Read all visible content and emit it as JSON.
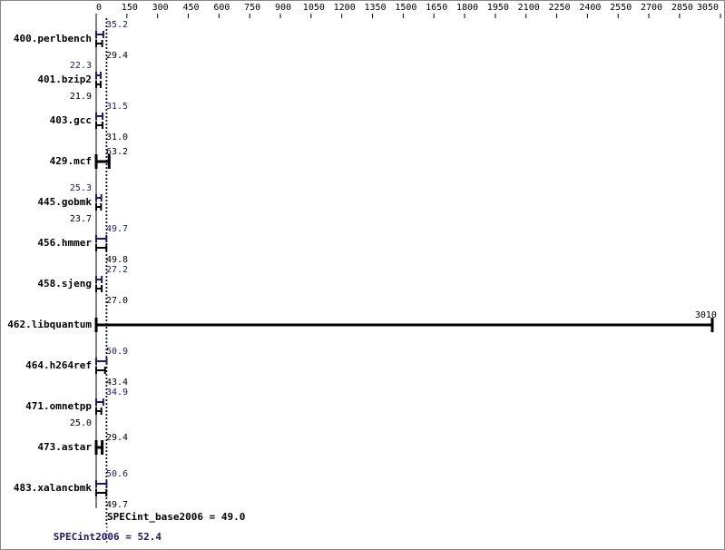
{
  "chart_data": {
    "type": "bar",
    "orientation": "horizontal",
    "categories": [
      "400.perlbench",
      "401.bzip2",
      "403.gcc",
      "429.mcf",
      "445.gobmk",
      "456.hmmer",
      "458.sjeng",
      "462.libquantum",
      "464.h264ref",
      "471.omnetpp",
      "473.astar",
      "483.xalancbmk"
    ],
    "series": [
      {
        "color": "#000000",
        "values": [
          29.4,
          21.9,
          31.0,
          63.2,
          23.7,
          49.8,
          27.0,
          3010,
          43.4,
          25.0,
          29.4,
          49.7
        ],
        "value_labels": [
          "29.4",
          "21.9",
          "31.0",
          "63.2",
          "23.7",
          "49.8",
          "27.0",
          "3010",
          "43.4",
          "25.0",
          "29.4",
          "49.7"
        ]
      },
      {
        "color": "#191970",
        "values": [
          35.2,
          22.3,
          31.5,
          null,
          25.3,
          49.7,
          27.2,
          null,
          50.9,
          34.9,
          null,
          50.6
        ],
        "value_labels": [
          "35.2",
          "22.3",
          "31.5",
          null,
          "25.3",
          "49.7",
          "27.2",
          null,
          "50.9",
          "34.9",
          null,
          "50.6"
        ]
      }
    ],
    "xlim": [
      0,
      3050
    ],
    "xticks": [
      0,
      150,
      300,
      450,
      600,
      750,
      900,
      1050,
      1200,
      1350,
      1500,
      1650,
      1800,
      1950,
      2100,
      2250,
      2400,
      2550,
      2700,
      2850,
      3050
    ],
    "reference_lines": [
      {
        "label": "SPECint_base2006 = 49.0",
        "value": 49.0,
        "color": "#000000"
      },
      {
        "label": "SPECint2006 = 52.4",
        "value": 52.4,
        "color": "#191970"
      }
    ]
  }
}
